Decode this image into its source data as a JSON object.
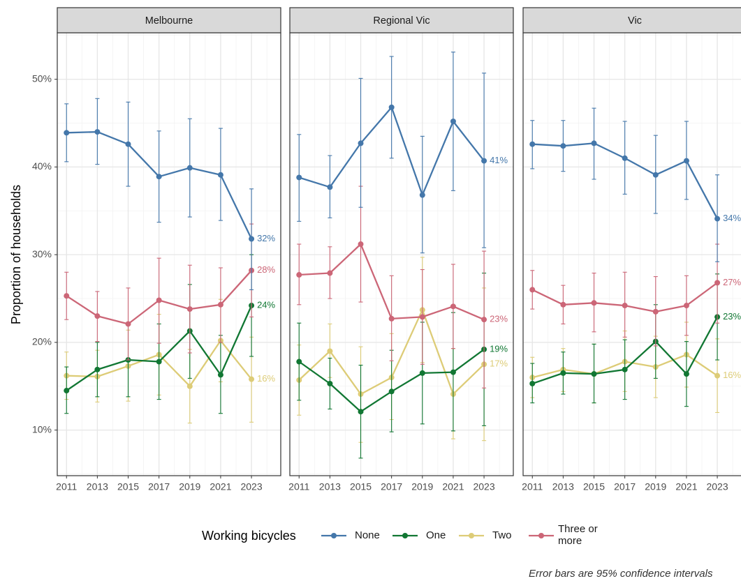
{
  "chart_data": {
    "type": "line",
    "ylabel": "Proportion of households",
    "y_tick_labels": [
      "10%",
      "20%",
      "30%",
      "40%",
      "50%"
    ],
    "y_ticks": [
      10,
      20,
      30,
      40,
      50
    ],
    "ylim": [
      4.8,
      55.3
    ],
    "x_tick_labels": [
      "2011",
      "2013",
      "2015",
      "2017",
      "2019",
      "2021",
      "2023"
    ],
    "x": [
      2011,
      2013,
      2015,
      2017,
      2019,
      2021,
      2023
    ],
    "xlim": [
      2010.4,
      2024.9
    ],
    "grid": true,
    "legend_title": "Working bicycles",
    "legend_position": "bottom",
    "caption": "Error bars are 95% confidence intervals",
    "series_styles": [
      {
        "key": "none",
        "name": "None",
        "color": "#4477AA"
      },
      {
        "key": "one",
        "name": "One",
        "color": "#117733"
      },
      {
        "key": "two",
        "name": "Two",
        "color": "#DDCC77"
      },
      {
        "key": "three",
        "name": "Three or more",
        "name_lines": [
          "Three or",
          "more"
        ],
        "color": "#CC6677"
      }
    ],
    "draw_order": [
      "two",
      "one",
      "three",
      "none"
    ],
    "panels": [
      {
        "title": "Melbourne",
        "series": {
          "none": {
            "values": [
              43.9,
              44.0,
              42.6,
              38.9,
              39.9,
              39.1,
              31.8
            ],
            "lower": [
              40.6,
              40.3,
              37.8,
              33.7,
              34.3,
              33.9,
              26.0
            ],
            "upper": [
              47.2,
              47.8,
              47.4,
              44.1,
              45.5,
              44.4,
              37.5
            ],
            "end_label": "32%"
          },
          "one": {
            "values": [
              14.5,
              16.9,
              18.0,
              17.8,
              21.3,
              16.3,
              24.2
            ],
            "lower": [
              11.9,
              13.8,
              13.8,
              13.5,
              15.9,
              11.9,
              18.4
            ],
            "upper": [
              17.2,
              20.0,
              22.1,
              22.1,
              26.6,
              20.8,
              30.0
            ],
            "end_label": "24%"
          },
          "two": {
            "values": [
              16.2,
              16.1,
              17.3,
              18.6,
              15.0,
              20.2,
              15.8
            ],
            "lower": [
              13.5,
              13.2,
              13.3,
              14.0,
              10.8,
              15.5,
              10.9
            ],
            "upper": [
              18.9,
              19.1,
              21.4,
              23.2,
              19.2,
              24.9,
              20.6
            ],
            "end_label": "16%"
          },
          "three": {
            "values": [
              25.3,
              23.0,
              22.1,
              24.8,
              23.8,
              24.3,
              28.2
            ],
            "lower": [
              22.6,
              20.1,
              18.0,
              19.9,
              18.8,
              20.0,
              22.9
            ],
            "upper": [
              28.0,
              25.8,
              26.2,
              29.6,
              28.8,
              28.5,
              33.5
            ],
            "end_label": "28%"
          }
        }
      },
      {
        "title": "Regional Vic",
        "series": {
          "none": {
            "values": [
              38.8,
              37.7,
              42.7,
              46.8,
              36.8,
              45.2,
              40.7
            ],
            "lower": [
              33.8,
              34.2,
              35.4,
              41.0,
              30.2,
              37.3,
              30.8
            ],
            "upper": [
              43.7,
              41.3,
              50.1,
              52.6,
              43.5,
              53.1,
              50.7
            ],
            "end_label": "41%"
          },
          "one": {
            "values": [
              17.8,
              15.3,
              12.1,
              14.4,
              16.5,
              16.6,
              19.2
            ],
            "lower": [
              13.4,
              12.4,
              6.8,
              9.8,
              10.7,
              9.9,
              10.5
            ],
            "upper": [
              22.2,
              18.2,
              17.4,
              19.1,
              22.3,
              23.4,
              27.9
            ],
            "end_label": "19%"
          },
          "two": {
            "values": [
              15.7,
              19.0,
              14.1,
              16.0,
              23.7,
              14.1,
              17.5
            ],
            "lower": [
              11.7,
              16.0,
              8.6,
              11.2,
              17.7,
              9.0,
              8.8
            ],
            "upper": [
              19.7,
              22.1,
              19.5,
              21.0,
              29.7,
              19.3,
              26.2
            ],
            "end_label": "17%"
          },
          "three": {
            "values": [
              27.7,
              27.9,
              31.2,
              22.7,
              22.9,
              24.1,
              22.6
            ],
            "lower": [
              24.3,
              25.0,
              24.6,
              17.9,
              17.5,
              19.3,
              14.8
            ],
            "upper": [
              31.2,
              30.9,
              37.8,
              27.6,
              28.3,
              28.9,
              30.4
            ],
            "end_label": "23%"
          }
        }
      },
      {
        "title": "Vic",
        "series": {
          "none": {
            "values": [
              42.6,
              42.4,
              42.7,
              41.0,
              39.1,
              40.7,
              34.1
            ],
            "lower": [
              39.8,
              39.5,
              38.6,
              36.9,
              34.7,
              36.3,
              29.2
            ],
            "upper": [
              45.3,
              45.3,
              46.7,
              45.2,
              43.6,
              45.2,
              39.1
            ],
            "end_label": "34%"
          },
          "one": {
            "values": [
              15.3,
              16.5,
              16.4,
              16.9,
              20.1,
              16.4,
              22.9
            ],
            "lower": [
              13.1,
              14.1,
              13.1,
              13.5,
              15.9,
              12.7,
              18.0
            ],
            "upper": [
              17.6,
              18.9,
              19.8,
              20.3,
              24.3,
              20.1,
              27.8
            ],
            "end_label": "23%"
          },
          "two": {
            "values": [
              16.0,
              16.9,
              16.4,
              17.8,
              17.2,
              18.6,
              16.2
            ],
            "lower": [
              13.7,
              14.4,
              13.1,
              14.4,
              13.7,
              14.9,
              12.0
            ],
            "upper": [
              18.3,
              19.3,
              19.8,
              21.3,
              20.7,
              22.3,
              20.4
            ],
            "end_label": "16%"
          },
          "three": {
            "values": [
              26.0,
              24.3,
              24.5,
              24.2,
              23.5,
              24.2,
              26.8
            ],
            "lower": [
              23.8,
              22.1,
              21.2,
              20.6,
              19.6,
              20.8,
              22.2
            ],
            "upper": [
              28.2,
              26.5,
              27.9,
              28.0,
              27.5,
              27.6,
              31.2
            ],
            "end_label": "27%"
          }
        }
      }
    ]
  }
}
